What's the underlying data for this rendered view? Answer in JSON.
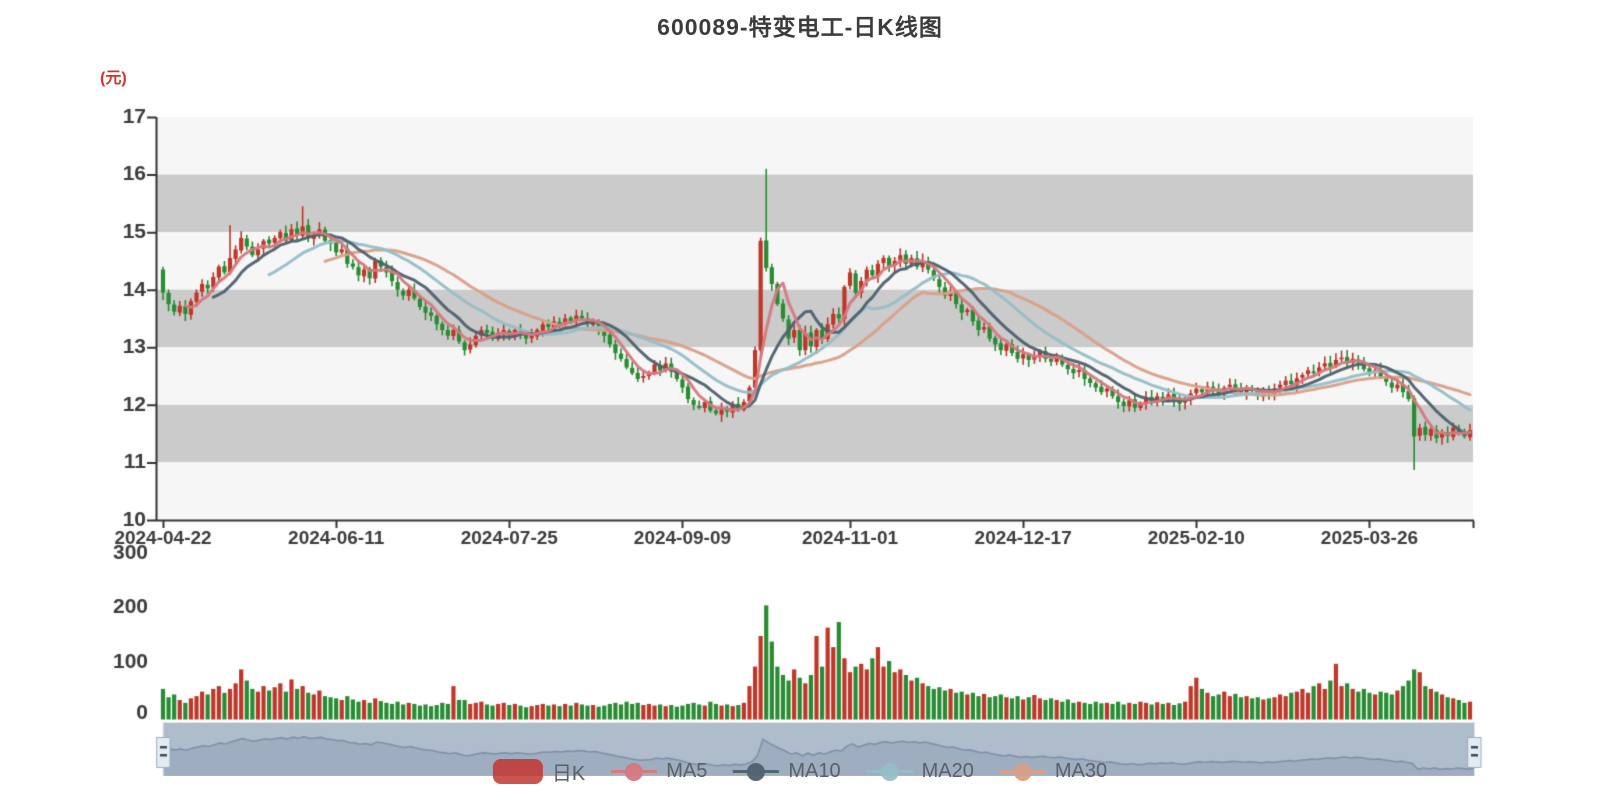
{
  "chart_data": {
    "type": "candlestick",
    "title": "600089-特变电工-日K线图",
    "unit_label": "(元)",
    "grid": "horizontal alternating bands, no vertical gridlines",
    "legend_position": "bottom",
    "y_axis": {
      "min": 10,
      "max": 17,
      "tick_values": [
        17,
        16,
        15,
        14,
        13,
        12,
        11,
        10
      ],
      "tick_labels": [
        "17",
        "16",
        "15",
        "14",
        "13",
        "12",
        "11",
        "10"
      ]
    },
    "volume_axis": {
      "min": 0,
      "max": 300,
      "tick_values": [
        300,
        200,
        100,
        0
      ],
      "tick_labels": [
        "300",
        "200",
        "100",
        "0"
      ]
    },
    "x_axis": {
      "ticks": [
        {
          "label": "2024-04-22",
          "day": 0
        },
        {
          "label": "2024-06-11",
          "day": 31
        },
        {
          "label": "2024-07-25",
          "day": 62
        },
        {
          "label": "2024-09-09",
          "day": 93
        },
        {
          "label": "2024-11-01",
          "day": 123
        },
        {
          "label": "2024-12-17",
          "day": 154
        },
        {
          "label": "2025-02-10",
          "day": 185
        },
        {
          "label": "2025-03-26",
          "day": 216
        }
      ]
    },
    "derivation_note": "Daily K-line, ~235 sessions 2024-04-22 to 2025-04. Closes and volumes read/estimated from chart; open of each candle = previous close; notable wick extremes listed in wick_overrides.",
    "first_open": 14.35,
    "closes": [
      13.95,
      13.75,
      13.62,
      13.72,
      13.58,
      13.8,
      13.95,
      14.1,
      14.02,
      14.22,
      14.4,
      14.3,
      14.55,
      14.7,
      14.9,
      14.75,
      14.6,
      14.7,
      14.85,
      14.8,
      14.9,
      15.0,
      14.85,
      15.05,
      14.95,
      15.1,
      14.9,
      14.95,
      15.05,
      14.85,
      14.8,
      14.65,
      14.7,
      14.45,
      14.4,
      14.25,
      14.35,
      14.2,
      14.5,
      14.4,
      14.3,
      14.15,
      14.0,
      13.9,
      14.0,
      13.85,
      13.7,
      13.6,
      13.55,
      13.4,
      13.3,
      13.2,
      13.3,
      13.1,
      12.95,
      13.05,
      13.2,
      13.3,
      13.25,
      13.15,
      13.25,
      13.3,
      13.2,
      13.3,
      13.25,
      13.15,
      13.2,
      13.3,
      13.4,
      13.35,
      13.45,
      13.4,
      13.5,
      13.45,
      13.55,
      13.5,
      13.4,
      13.45,
      13.3,
      13.2,
      13.05,
      12.9,
      12.8,
      12.65,
      12.55,
      12.45,
      12.5,
      12.55,
      12.7,
      12.6,
      12.72,
      12.58,
      12.45,
      12.3,
      12.1,
      12.0,
      11.95,
      12.05,
      11.9,
      11.85,
      11.95,
      11.88,
      12.0,
      11.92,
      12.05,
      12.3,
      12.95,
      14.85,
      14.38,
      14.1,
      13.75,
      13.5,
      13.15,
      13.3,
      12.95,
      13.25,
      13.02,
      13.3,
      13.15,
      13.4,
      13.58,
      13.5,
      14.05,
      14.3,
      13.95,
      14.15,
      14.35,
      14.25,
      14.45,
      14.55,
      14.4,
      14.5,
      14.6,
      14.45,
      14.55,
      14.4,
      14.5,
      14.35,
      14.2,
      14.05,
      13.9,
      13.95,
      13.75,
      13.6,
      13.65,
      13.45,
      13.3,
      13.35,
      13.15,
      13.05,
      12.95,
      13.05,
      12.9,
      12.8,
      12.88,
      12.78,
      12.85,
      12.92,
      12.8,
      12.75,
      12.82,
      12.7,
      12.62,
      12.55,
      12.6,
      12.45,
      12.38,
      12.3,
      12.22,
      12.28,
      12.15,
      12.05,
      11.98,
      12.08,
      11.95,
      12.02,
      12.12,
      12.06,
      12.15,
      12.1,
      12.18,
      12.08,
      12.02,
      12.1,
      12.2,
      12.28,
      12.22,
      12.32,
      12.26,
      12.2,
      12.3,
      12.35,
      12.28,
      12.22,
      12.3,
      12.24,
      12.16,
      12.26,
      12.2,
      12.28,
      12.35,
      12.42,
      12.36,
      12.46,
      12.52,
      12.6,
      12.55,
      12.65,
      12.72,
      12.66,
      12.78,
      12.82,
      12.72,
      12.8,
      12.74,
      12.62,
      12.55,
      12.6,
      12.48,
      12.4,
      12.3,
      12.35,
      12.22,
      12.1,
      11.45,
      11.6,
      11.48,
      11.58,
      11.42,
      11.52,
      11.46,
      11.6,
      11.52,
      11.45,
      11.56
    ],
    "volumes": [
      55,
      40,
      45,
      35,
      30,
      38,
      42,
      50,
      45,
      55,
      60,
      48,
      55,
      65,
      90,
      70,
      55,
      50,
      60,
      52,
      58,
      65,
      50,
      72,
      55,
      60,
      48,
      45,
      52,
      42,
      40,
      38,
      35,
      42,
      36,
      32,
      35,
      30,
      38,
      33,
      30,
      28,
      32,
      27,
      30,
      28,
      25,
      27,
      24,
      26,
      30,
      28,
      60,
      35,
      35,
      28,
      30,
      32,
      27,
      25,
      28,
      30,
      26,
      28,
      25,
      22,
      24,
      26,
      28,
      25,
      27,
      24,
      28,
      25,
      30,
      27,
      25,
      26,
      23,
      25,
      28,
      30,
      27,
      32,
      28,
      30,
      26,
      28,
      25,
      27,
      24,
      26,
      23,
      25,
      28,
      30,
      27,
      25,
      32,
      28,
      25,
      27,
      24,
      26,
      30,
      60,
      95,
      150,
      205,
      140,
      95,
      80,
      70,
      90,
      75,
      65,
      80,
      150,
      95,
      165,
      130,
      175,
      110,
      85,
      95,
      100,
      90,
      110,
      130,
      95,
      105,
      85,
      90,
      80,
      70,
      75,
      65,
      60,
      55,
      58,
      52,
      55,
      48,
      50,
      45,
      48,
      42,
      46,
      40,
      42,
      45,
      40,
      38,
      42,
      36,
      40,
      44,
      38,
      35,
      38,
      35,
      32,
      36,
      30,
      32,
      30,
      28,
      32,
      29,
      30,
      28,
      32,
      27,
      30,
      28,
      32,
      30,
      27,
      31,
      28,
      30,
      26,
      29,
      32,
      60,
      75,
      55,
      48,
      42,
      45,
      50,
      42,
      46,
      40,
      42,
      38,
      40,
      36,
      38,
      40,
      45,
      42,
      48,
      50,
      55,
      48,
      60,
      65,
      55,
      70,
      100,
      60,
      65,
      55,
      50,
      55,
      48,
      45,
      50,
      48,
      45,
      52,
      60,
      70,
      90,
      85,
      60,
      55,
      50,
      45,
      40,
      38,
      35,
      30,
      32
    ],
    "wick_overrides": {
      "12": {
        "high": 15.12
      },
      "25": {
        "high": 15.45
      },
      "108": {
        "high": 16.1
      },
      "224": {
        "low": 10.87
      }
    },
    "ma_series": [
      {
        "name": "MA5",
        "period": 5,
        "color": "#d67880"
      },
      {
        "name": "MA10",
        "period": 10,
        "color": "#4d616e"
      },
      {
        "name": "MA20",
        "period": 20,
        "color": "#96bec8"
      },
      {
        "name": "MA30",
        "period": 30,
        "color": "#d9a088"
      }
    ],
    "colors": {
      "up": "#be3728",
      "down": "#288c32",
      "band_light": "#f6f6f6",
      "band_gray": "#cbcbcb",
      "axis": "#333333",
      "axis_label": "#3c3c3c",
      "title": "#3c3c3c",
      "unit_label": "#d0342c"
    }
  },
  "legend": {
    "items": [
      {
        "label": "日K",
        "type": "candlestick",
        "color": "#c23531"
      },
      {
        "label": "MA5",
        "type": "line",
        "color": "#d67880"
      },
      {
        "label": "MA10",
        "type": "line",
        "color": "#4d616e"
      },
      {
        "label": "MA20",
        "type": "line",
        "color": "#96bec8"
      },
      {
        "label": "MA30",
        "type": "line",
        "color": "#d9a088"
      }
    ]
  },
  "navigator": {
    "range": "full (both handles at extremes)",
    "colors": {
      "background": "#aebccc",
      "area": "#9eadc0",
      "line": "#7e90a6",
      "frame": "#dfe4ea",
      "handle_fill": "#e3eaf1",
      "handle_border": "#9fadbb",
      "handle_slats": "#3c4a56"
    }
  }
}
